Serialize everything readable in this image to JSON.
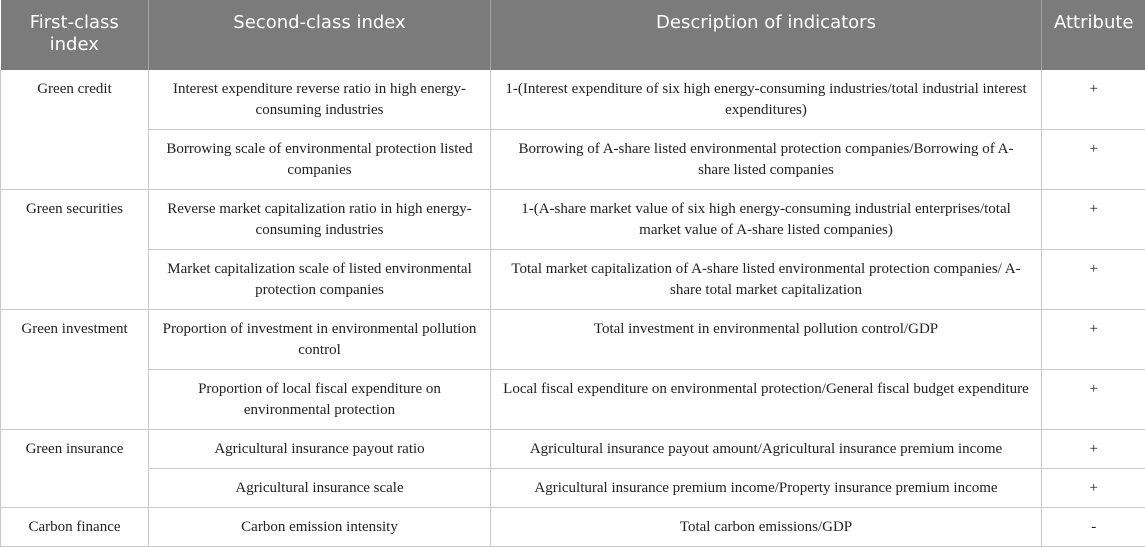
{
  "header": {
    "col1": "First-class index",
    "col2": "Second-class index",
    "col3": "Description of indicators",
    "col4": "Attribute"
  },
  "groups": [
    {
      "name": "Green credit",
      "rows": [
        {
          "second": "Interest expenditure reverse ratio in high energy-consuming industries",
          "description": "1-(Interest expenditure of six high energy-consuming industries/total industrial interest expenditures)",
          "attribute": "+"
        },
        {
          "second": "Borrowing scale of environmental protection listed companies",
          "description": "Borrowing of A-share listed environmental protection companies/Borrowing of A-share listed companies",
          "attribute": "+"
        }
      ]
    },
    {
      "name": "Green securities",
      "rows": [
        {
          "second": "Reverse market capitalization ratio in high energy-consuming industries",
          "description": "1-(A-share market value of six high energy-consuming industrial enterprises/total market value of A-share listed companies)",
          "attribute": "+"
        },
        {
          "second": "Market capitalization scale of listed environmental protection companies",
          "description": "Total market capitalization of A-share listed environmental protection companies/ A-share total market capitalization",
          "attribute": "+"
        }
      ]
    },
    {
      "name": "Green investment",
      "rows": [
        {
          "second": "Proportion of investment in environmental pollution control",
          "description": "Total investment in environmental pollution control/GDP",
          "attribute": "+"
        },
        {
          "second": "Proportion of local fiscal expenditure on environmental protection",
          "description": "Local fiscal expenditure on environmental protection/General fiscal budget expenditure",
          "attribute": "+"
        }
      ]
    },
    {
      "name": "Green insurance",
      "rows": [
        {
          "second": "Agricultural insurance payout ratio",
          "description": "Agricultural insurance payout amount/Agricultural insurance premium income",
          "attribute": "+"
        },
        {
          "second": "Agricultural insurance scale",
          "description": "Agricultural insurance premium income/Property insurance premium income",
          "attribute": "+"
        }
      ]
    },
    {
      "name": "Carbon finance",
      "rows": [
        {
          "second": "Carbon emission intensity",
          "description": "Total carbon emissions/GDP",
          "attribute": "-"
        }
      ]
    }
  ]
}
